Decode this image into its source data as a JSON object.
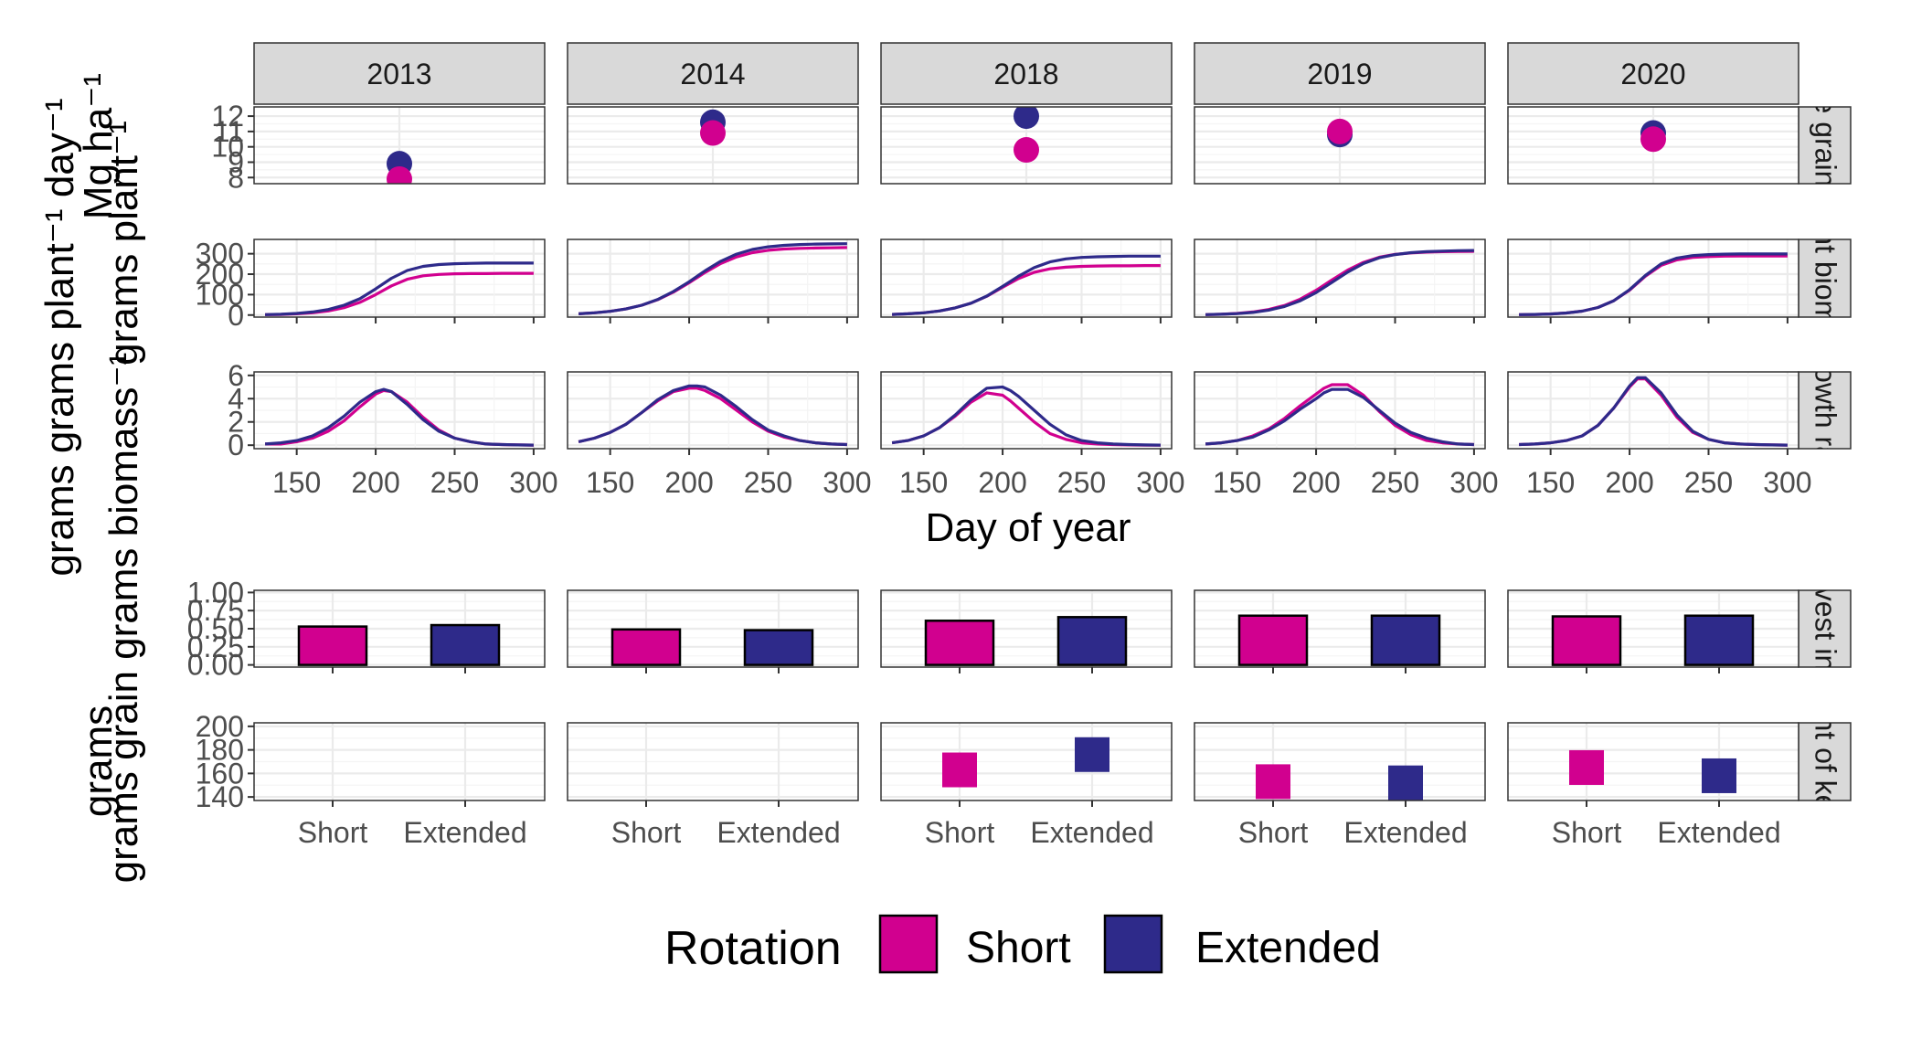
{
  "years": [
    "2013",
    "2014",
    "2018",
    "2019",
    "2020"
  ],
  "x_axis_title": "Day of year",
  "row_strips": [
    "Maize grain yield",
    "Plant biomass",
    "Growth rate",
    "Harvest index",
    "Weight of kernels"
  ],
  "y_axis_titles": [
    "Mg  ha⁻¹",
    "grams plant⁻¹",
    "grams grams plant⁻¹ day⁻¹",
    "grams grain grams biomass⁻¹",
    "grams"
  ],
  "legend": {
    "title": "Rotation",
    "items": [
      {
        "label": "Short",
        "color": "#D1008F"
      },
      {
        "label": "Extended",
        "color": "#2E2A8A"
      }
    ]
  },
  "colors": {
    "Short": "#D1008F",
    "Extended": "#2E2A8A"
  },
  "chart_data": [
    {
      "type": "scatter",
      "row": "Maize grain yield",
      "ylabel": "Mg  ha⁻¹",
      "ylim": [
        7.6,
        12.6
      ],
      "yticks": [
        8,
        9,
        10,
        11,
        12
      ],
      "x_day": 215,
      "series": [
        {
          "name": "Short",
          "values": {
            "2013": 7.9,
            "2014": 10.9,
            "2018": 9.8,
            "2019": 11.0,
            "2020": 10.5
          }
        },
        {
          "name": "Extended",
          "values": {
            "2013": 8.9,
            "2014": 11.6,
            "2018": 12.0,
            "2019": 10.8,
            "2020": 10.9
          }
        }
      ]
    },
    {
      "type": "line",
      "row": "Plant biomass",
      "ylabel": "grams plant⁻¹",
      "xlabel": "Day of year",
      "xlim": [
        123,
        307
      ],
      "ylim": [
        -10,
        370
      ],
      "yticks": [
        0,
        100,
        200,
        300
      ],
      "x": [
        130,
        140,
        150,
        160,
        170,
        180,
        190,
        200,
        210,
        220,
        230,
        240,
        250,
        260,
        270,
        280,
        290,
        300
      ],
      "series": [
        {
          "name": "Short",
          "year": "2013",
          "values": [
            2,
            3,
            6,
            11,
            20,
            36,
            62,
            100,
            143,
            175,
            192,
            199,
            202,
            203,
            203,
            204,
            204,
            204
          ]
        },
        {
          "name": "Extended",
          "year": "2013",
          "values": [
            2,
            4,
            8,
            15,
            27,
            48,
            80,
            128,
            180,
            218,
            238,
            247,
            251,
            253,
            254,
            254,
            254,
            254
          ]
        },
        {
          "name": "Short",
          "year": "2014",
          "values": [
            6,
            11,
            18,
            30,
            48,
            75,
            112,
            158,
            208,
            252,
            284,
            305,
            317,
            323,
            326,
            328,
            329,
            330
          ]
        },
        {
          "name": "Extended",
          "year": "2014",
          "values": [
            6,
            11,
            18,
            30,
            48,
            76,
            115,
            163,
            216,
            263,
            298,
            321,
            334,
            341,
            345,
            347,
            348,
            349
          ]
        },
        {
          "name": "Short",
          "year": "2018",
          "values": [
            3,
            6,
            11,
            20,
            35,
            58,
            92,
            136,
            178,
            209,
            226,
            234,
            238,
            240,
            241,
            241,
            242,
            242
          ]
        },
        {
          "name": "Extended",
          "year": "2018",
          "values": [
            3,
            6,
            11,
            20,
            35,
            58,
            93,
            140,
            190,
            232,
            260,
            275,
            282,
            285,
            287,
            288,
            288,
            288
          ]
        },
        {
          "name": "Short",
          "year": "2019",
          "values": [
            2,
            4,
            8,
            15,
            27,
            47,
            78,
            121,
            172,
            220,
            258,
            283,
            297,
            304,
            308,
            310,
            311,
            312
          ]
        },
        {
          "name": "Extended",
          "year": "2019",
          "values": [
            2,
            4,
            7,
            13,
            24,
            42,
            70,
            110,
            160,
            210,
            252,
            280,
            296,
            305,
            310,
            313,
            315,
            316
          ]
        },
        {
          "name": "Short",
          "year": "2020",
          "values": [
            2,
            3,
            5,
            10,
            19,
            37,
            70,
            122,
            190,
            243,
            270,
            282,
            286,
            288,
            289,
            289,
            289,
            289
          ]
        },
        {
          "name": "Extended",
          "year": "2020",
          "values": [
            2,
            3,
            5,
            10,
            19,
            37,
            70,
            124,
            194,
            250,
            279,
            291,
            296,
            298,
            299,
            299,
            299,
            299
          ]
        }
      ]
    },
    {
      "type": "line",
      "row": "Growth rate",
      "ylabel": "grams grams plant⁻¹ day⁻¹",
      "xlabel": "Day of year",
      "xlim": [
        123,
        307
      ],
      "xticks": [
        150,
        200,
        250,
        300
      ],
      "ylim": [
        -0.3,
        6.3
      ],
      "yticks": [
        0,
        2,
        4,
        6
      ],
      "x": [
        130,
        140,
        150,
        160,
        170,
        180,
        190,
        200,
        205,
        210,
        220,
        230,
        240,
        250,
        260,
        270,
        280,
        290,
        300
      ],
      "series": [
        {
          "name": "Short",
          "year": "2013",
          "values": [
            0.1,
            0.1,
            0.3,
            0.6,
            1.2,
            2.1,
            3.3,
            4.4,
            4.7,
            4.6,
            3.7,
            2.4,
            1.3,
            0.6,
            0.3,
            0.1,
            0.05,
            0.02,
            0.01
          ]
        },
        {
          "name": "Extended",
          "year": "2013",
          "values": [
            0.1,
            0.2,
            0.4,
            0.8,
            1.5,
            2.5,
            3.7,
            4.6,
            4.8,
            4.6,
            3.5,
            2.2,
            1.2,
            0.6,
            0.3,
            0.1,
            0.05,
            0.02,
            0.01
          ]
        },
        {
          "name": "Short",
          "year": "2014",
          "values": [
            0.3,
            0.6,
            1.1,
            1.8,
            2.8,
            3.8,
            4.6,
            4.9,
            4.9,
            4.7,
            4.0,
            3.0,
            2.0,
            1.2,
            0.7,
            0.4,
            0.2,
            0.1,
            0.05
          ]
        },
        {
          "name": "Extended",
          "year": "2014",
          "values": [
            0.3,
            0.6,
            1.1,
            1.8,
            2.8,
            3.9,
            4.7,
            5.1,
            5.1,
            5.0,
            4.3,
            3.3,
            2.2,
            1.3,
            0.8,
            0.4,
            0.2,
            0.1,
            0.05
          ]
        },
        {
          "name": "Short",
          "year": "2018",
          "values": [
            0.2,
            0.4,
            0.8,
            1.5,
            2.5,
            3.7,
            4.5,
            4.3,
            3.8,
            3.2,
            2.0,
            1.0,
            0.5,
            0.2,
            0.1,
            0.05,
            0.02,
            0.01,
            0.01
          ]
        },
        {
          "name": "Extended",
          "year": "2018",
          "values": [
            0.2,
            0.4,
            0.8,
            1.5,
            2.6,
            3.9,
            4.9,
            5.0,
            4.7,
            4.2,
            3.0,
            1.8,
            0.9,
            0.4,
            0.2,
            0.1,
            0.05,
            0.02,
            0.01
          ]
        },
        {
          "name": "Short",
          "year": "2019",
          "values": [
            0.1,
            0.2,
            0.4,
            0.8,
            1.4,
            2.3,
            3.4,
            4.4,
            4.9,
            5.2,
            5.2,
            4.3,
            2.9,
            1.7,
            0.9,
            0.4,
            0.2,
            0.1,
            0.05
          ]
        },
        {
          "name": "Extended",
          "year": "2019",
          "values": [
            0.1,
            0.2,
            0.4,
            0.7,
            1.3,
            2.1,
            3.1,
            4.0,
            4.5,
            4.8,
            4.8,
            4.1,
            3.0,
            1.9,
            1.1,
            0.6,
            0.3,
            0.1,
            0.05
          ]
        },
        {
          "name": "Short",
          "year": "2020",
          "values": [
            0.05,
            0.1,
            0.2,
            0.4,
            0.8,
            1.7,
            3.2,
            5.0,
            5.7,
            5.7,
            4.3,
            2.4,
            1.1,
            0.5,
            0.2,
            0.1,
            0.05,
            0.02,
            0.01
          ]
        },
        {
          "name": "Extended",
          "year": "2020",
          "values": [
            0.05,
            0.1,
            0.2,
            0.4,
            0.8,
            1.7,
            3.2,
            5.1,
            5.8,
            5.8,
            4.5,
            2.6,
            1.2,
            0.5,
            0.2,
            0.1,
            0.05,
            0.02,
            0.01
          ]
        }
      ]
    },
    {
      "type": "bar",
      "row": "Harvest index",
      "ylabel": "grams grain grams biomass⁻¹",
      "categories": [
        "Short",
        "Extended"
      ],
      "ylim": [
        -0.03,
        1.03
      ],
      "yticks": [
        0.0,
        0.25,
        0.5,
        0.75,
        1.0
      ],
      "yticklabels": [
        "0.00",
        "0.25",
        "0.50",
        "0.75",
        "1.00"
      ],
      "series": [
        {
          "name": "Short",
          "values": {
            "2013": 0.53,
            "2014": 0.49,
            "2018": 0.61,
            "2019": 0.68,
            "2020": 0.67
          }
        },
        {
          "name": "Extended",
          "values": {
            "2013": 0.55,
            "2014": 0.48,
            "2018": 0.66,
            "2019": 0.68,
            "2020": 0.68
          }
        }
      ]
    },
    {
      "type": "scatter",
      "row": "Weight of kernels",
      "ylabel": "grams",
      "categories": [
        "Short",
        "Extended"
      ],
      "ylim": [
        137,
        203
      ],
      "yticks": [
        140,
        160,
        180,
        200
      ],
      "series": [
        {
          "name": "Short",
          "values": {
            "2018": 163,
            "2019": 153,
            "2020": 165
          }
        },
        {
          "name": "Extended",
          "values": {
            "2018": 176,
            "2019": 152,
            "2020": 158
          }
        }
      ]
    }
  ]
}
